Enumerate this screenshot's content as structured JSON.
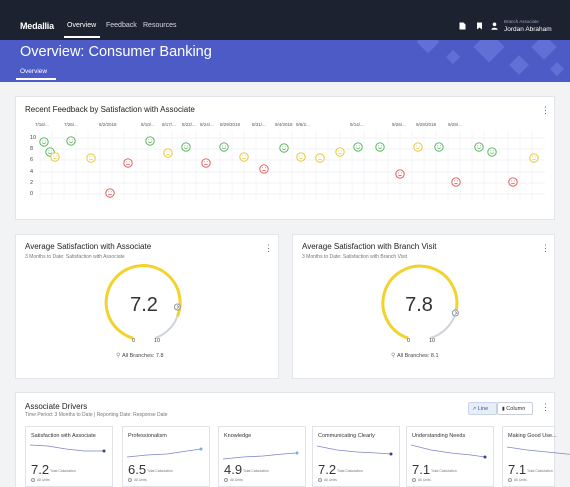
{
  "nav": {
    "logo": "Medallia",
    "links": [
      "Overview",
      "Feedback",
      "Resources"
    ],
    "user_role": "Branch Associate",
    "user_name": "Jordan Abraham",
    "icons": [
      "document-icon",
      "bookmark-icon",
      "user-icon"
    ]
  },
  "header": {
    "title": "Overview: Consumer Banking",
    "tab": "Overview"
  },
  "feedback": {
    "title": "Recent Feedback by Satisfaction with Associate",
    "dates": [
      "7/16/...",
      "7/26/...",
      "8/2/2018",
      "8/10/...",
      "8/17/...",
      "8/22/...",
      "8/24/...",
      "8/29/2018",
      "8/31/...",
      "9/4/2018",
      "9/6/2...",
      "9/14/...",
      "9/26/...",
      "9/29/2018",
      "9/29/..."
    ],
    "y_ticks": [
      "10",
      "8",
      "6",
      "4",
      "2",
      "0"
    ],
    "colors": {
      "happy": "#4caf50",
      "neutral": "#e6c229",
      "sad": "#e05050"
    }
  },
  "assoc": {
    "title": "Average Satisfaction with Associate",
    "subtitle": "3 Months to Date: Satisfaction with Associate",
    "value": "7.2",
    "min": "0",
    "max": "10",
    "footer": "All Branches: 7.8"
  },
  "branch": {
    "title": "Average Satisfaction with Branch Visit",
    "subtitle": "3 Months to Date: Satisfaction with Branch Visit",
    "value": "7.8",
    "min": "0",
    "max": "10",
    "footer": "All Branches: 8.1"
  },
  "drivers": {
    "title": "Associate Drivers",
    "subtitle": "Time Period: 3 Months to Date | Reporting Date: Response Date",
    "btn_line": "Line",
    "btn_column": "Column",
    "calc_label": "Total Calculation",
    "units_label": "All Units",
    "cards": [
      {
        "name": "Satisfaction with Associate",
        "value": "7.2"
      },
      {
        "name": "Professionalism",
        "value": "6.5"
      },
      {
        "name": "Knowledge",
        "value": "4.9"
      },
      {
        "name": "Communicating Clearly",
        "value": "7.2"
      },
      {
        "name": "Understanding Needs",
        "value": "7.1"
      },
      {
        "name": "Making Good Use...",
        "value": "7.1"
      }
    ]
  },
  "colors": {
    "nav": "#1c2230",
    "banner": "#4d5bc7",
    "gauge_fill": "#f2d22c",
    "gauge_track": "#cfd3da",
    "driver_line": "#7e84c9"
  }
}
